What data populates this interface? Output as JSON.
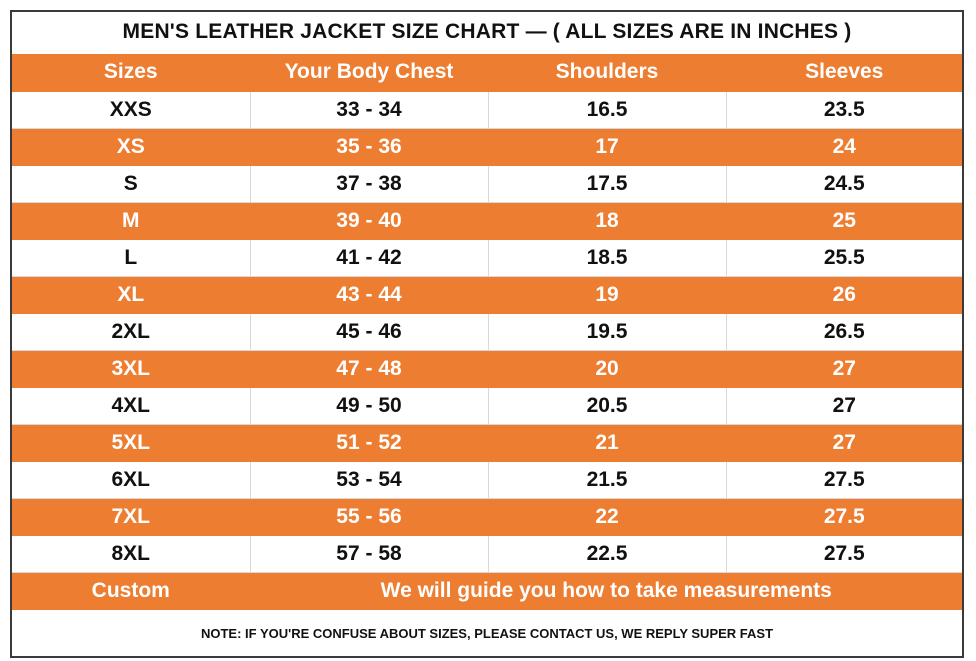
{
  "title": "MEN'S LEATHER JACKET SIZE CHART — ( ALL SIZES ARE IN INCHES )",
  "headers": [
    "Sizes",
    "Your Body Chest",
    "Shoulders",
    "Sleeves"
  ],
  "rows": [
    [
      "XXS",
      "33 - 34",
      "16.5",
      "23.5"
    ],
    [
      "XS",
      "35 - 36",
      "17",
      "24"
    ],
    [
      "S",
      "37 - 38",
      "17.5",
      "24.5"
    ],
    [
      "M",
      "39 - 40",
      "18",
      "25"
    ],
    [
      "L",
      "41 - 42",
      "18.5",
      "25.5"
    ],
    [
      "XL",
      "43 - 44",
      "19",
      "26"
    ],
    [
      "2XL",
      "45 - 46",
      "19.5",
      "26.5"
    ],
    [
      "3XL",
      "47 - 48",
      "20",
      "27"
    ],
    [
      "4XL",
      "49 - 50",
      "20.5",
      "27"
    ],
    [
      "5XL",
      "51 - 52",
      "21",
      "27"
    ],
    [
      "6XL",
      "53 - 54",
      "21.5",
      "27.5"
    ],
    [
      "7XL",
      "55 - 56",
      "22",
      "27.5"
    ],
    [
      "8XL",
      "57 - 58",
      "22.5",
      "27.5"
    ]
  ],
  "custom": {
    "label": "Custom",
    "text": "We will guide you how to take measurements"
  },
  "note": "NOTE: IF YOU'RE CONFUSE ABOUT SIZES, PLEASE CONTACT US, WE REPLY SUPER FAST",
  "colors": {
    "accent": "#ed7d31",
    "text": "#111111",
    "border": "#3a3a3a"
  }
}
